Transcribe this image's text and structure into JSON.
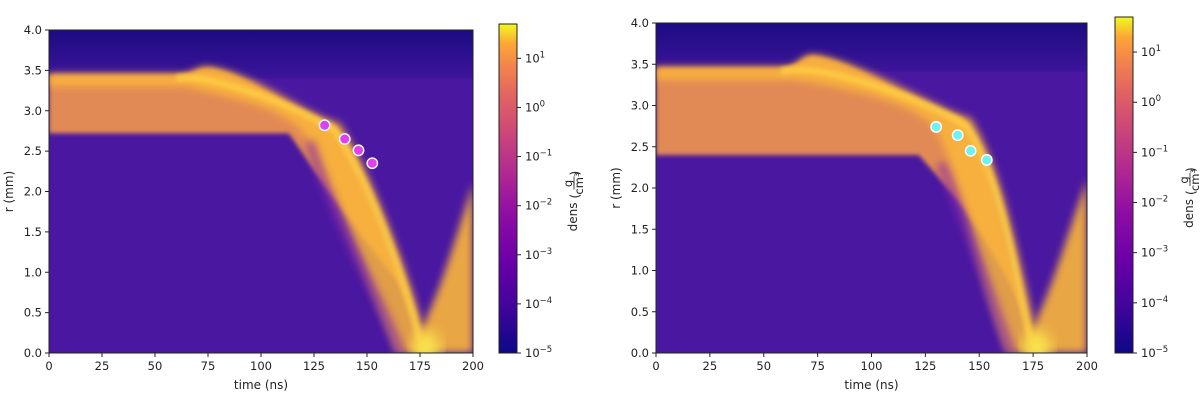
{
  "chart_data": [
    {
      "type": "heatmap",
      "title": "",
      "xlabel": "time (ns)",
      "ylabel": "r (mm)",
      "xlim": [
        0,
        200
      ],
      "ylim": [
        0.0,
        4.0
      ],
      "xticks": [
        "0",
        "25",
        "50",
        "75",
        "100",
        "125",
        "150",
        "175",
        "200"
      ],
      "yticks": [
        "0.0",
        "0.5",
        "1.0",
        "1.5",
        "2.0",
        "2.5",
        "3.0",
        "3.5",
        "4.0"
      ],
      "colorbar": {
        "label": "dens",
        "unit_num": "g",
        "unit_den": "cm³",
        "scale": "log",
        "range": [
          1e-05,
          50
        ],
        "ticks": [
          {
            "base": "10",
            "exp": "1",
            "value": 10
          },
          {
            "base": "10",
            "exp": "0",
            "value": 1
          },
          {
            "base": "10",
            "exp": "−1",
            "value": 0.1
          },
          {
            "base": "10",
            "exp": "−2",
            "value": 0.01
          },
          {
            "base": "10",
            "exp": "−3",
            "value": 0.001
          },
          {
            "base": "10",
            "exp": "−4",
            "value": 0.0001
          },
          {
            "base": "10",
            "exp": "−5",
            "value": 1e-05
          }
        ],
        "colormap": "plasma"
      },
      "liner": {
        "outer_r": 3.45,
        "inner_r": 2.72,
        "bump_t": 75,
        "bump_r": 3.53,
        "implosion_start_t": 113,
        "stagnation_t": 176
      },
      "points": {
        "color": "#e040ee",
        "x": [
          130,
          139.5,
          146,
          152.5
        ],
        "y": [
          2.82,
          2.65,
          2.51,
          2.35
        ]
      }
    },
    {
      "type": "heatmap",
      "title": "",
      "xlabel": "time (ns)",
      "ylabel": "r (mm)",
      "xlim": [
        0,
        200
      ],
      "ylim": [
        0.0,
        4.0
      ],
      "xticks": [
        "0",
        "25",
        "50",
        "75",
        "100",
        "125",
        "150",
        "175",
        "200"
      ],
      "yticks": [
        "0.0",
        "0.5",
        "1.0",
        "1.5",
        "2.0",
        "2.5",
        "3.0",
        "3.5",
        "4.0"
      ],
      "colorbar": {
        "label": "dens",
        "unit_num": "g",
        "unit_den": "cm³",
        "scale": "log",
        "range": [
          1e-05,
          50
        ],
        "ticks": [
          {
            "base": "10",
            "exp": "1",
            "value": 10
          },
          {
            "base": "10",
            "exp": "0",
            "value": 1
          },
          {
            "base": "10",
            "exp": "−1",
            "value": 0.1
          },
          {
            "base": "10",
            "exp": "−2",
            "value": 0.01
          },
          {
            "base": "10",
            "exp": "−3",
            "value": 0.001
          },
          {
            "base": "10",
            "exp": "−4",
            "value": 0.0001
          },
          {
            "base": "10",
            "exp": "−5",
            "value": 1e-05
          }
        ],
        "colormap": "plasma"
      },
      "liner": {
        "outer_r": 3.46,
        "inner_r": 2.4,
        "bump_t": 73,
        "bump_r": 3.6,
        "implosion_start_t": 122,
        "stagnation_t": 175
      },
      "points": {
        "color": "#6ff0f2",
        "x": [
          130,
          140,
          146,
          153.5
        ],
        "y": [
          2.74,
          2.64,
          2.45,
          2.34
        ]
      }
    }
  ],
  "colors": {
    "background_low": "#4a18a0",
    "vacuum_top": "#1c0c82",
    "liner": "#e28a55",
    "shell_bright": "#fbb63a",
    "shell_peak": "#f9e950"
  }
}
